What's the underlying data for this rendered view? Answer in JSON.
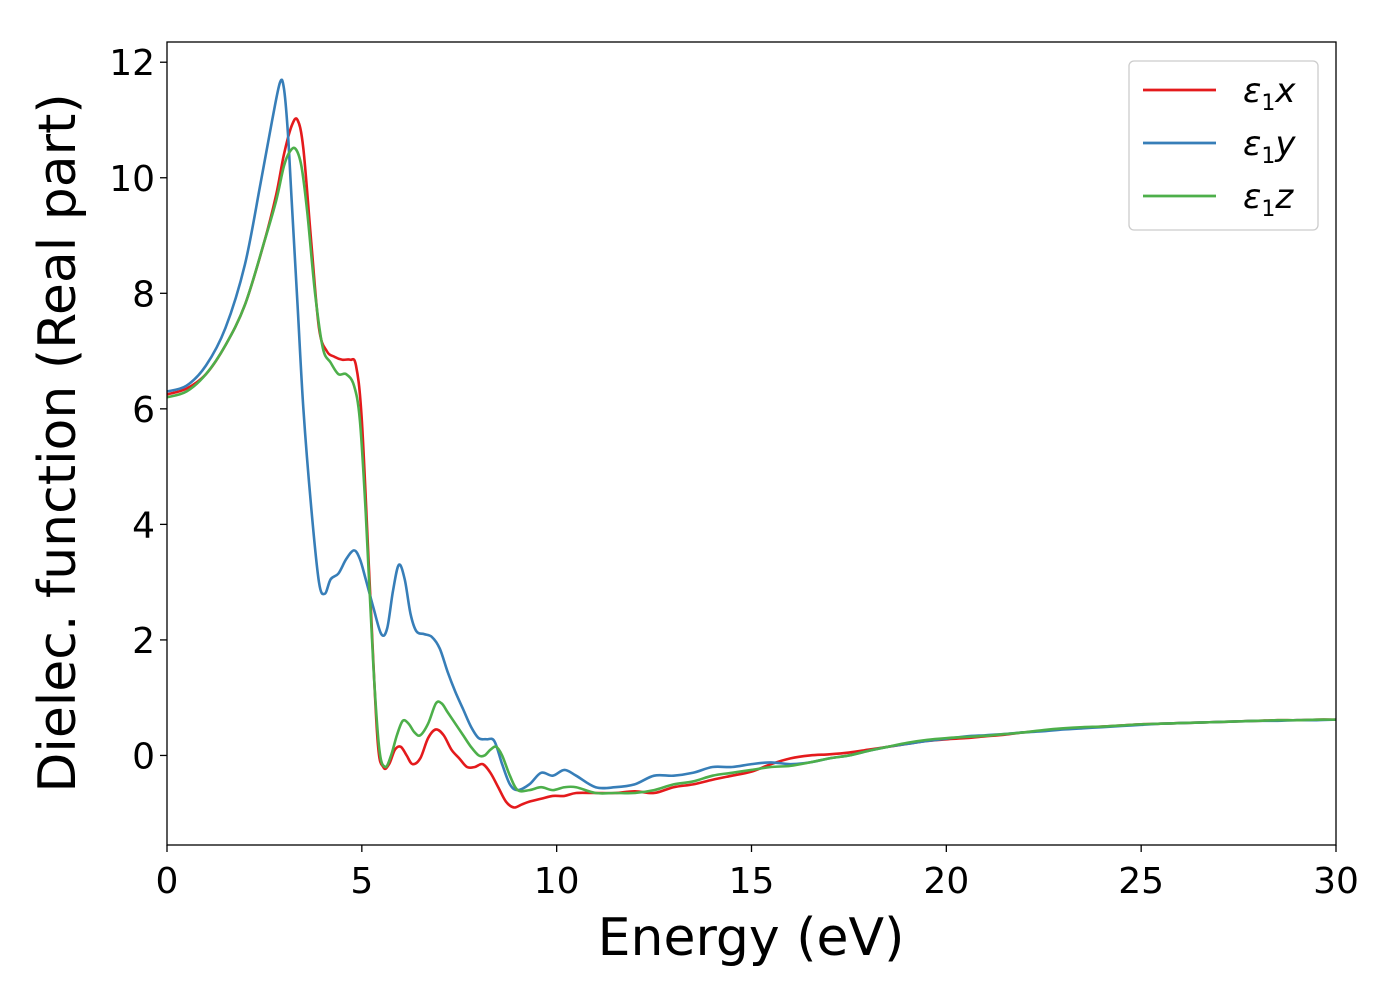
{
  "chart_data": {
    "type": "line",
    "title": "",
    "xlabel": "Energy (eV)",
    "ylabel": "Dielec. function (Real part)",
    "xlim": [
      0,
      30
    ],
    "ylim": [
      -1.55,
      12.35
    ],
    "xticks": [
      0,
      5,
      10,
      15,
      20,
      25,
      30
    ],
    "yticks": [
      0,
      2,
      4,
      6,
      8,
      10,
      12
    ],
    "grid": false,
    "legend_position": "top-right",
    "series": [
      {
        "name": "ε1x",
        "legend_base": "ε",
        "legend_sub": "1",
        "legend_suffix": "x",
        "color": "#e41a1c",
        "x": [
          0,
          0.5,
          1.0,
          1.5,
          2.0,
          2.5,
          2.8,
          3.0,
          3.2,
          3.35,
          3.5,
          3.7,
          3.9,
          4.1,
          4.3,
          4.5,
          4.7,
          4.85,
          5.0,
          5.2,
          5.4,
          5.55,
          5.7,
          5.85,
          6.0,
          6.15,
          6.3,
          6.5,
          6.7,
          6.9,
          7.1,
          7.3,
          7.5,
          7.7,
          7.9,
          8.1,
          8.3,
          8.5,
          8.7,
          8.9,
          9.1,
          9.3,
          9.6,
          9.9,
          10.2,
          10.5,
          11.0,
          11.5,
          12.0,
          12.5,
          13.0,
          13.5,
          14.0,
          14.5,
          15.0,
          15.5,
          16.0,
          16.5,
          17.0,
          17.5,
          18.0,
          18.5,
          19.0,
          19.5,
          20.0,
          20.5,
          21.0,
          21.5,
          22.0,
          22.5,
          23.0,
          23.5,
          24.0,
          24.5,
          25.0,
          25.5,
          26.0,
          26.5,
          27.0,
          27.5,
          28.0,
          28.5,
          29.0,
          29.5,
          30.0
        ],
        "y": [
          6.25,
          6.35,
          6.6,
          7.1,
          7.8,
          8.9,
          9.7,
          10.4,
          10.9,
          11.0,
          10.5,
          8.9,
          7.4,
          7.0,
          6.9,
          6.85,
          6.85,
          6.75,
          5.8,
          3.0,
          0.3,
          -0.2,
          -0.15,
          0.1,
          0.15,
          0.0,
          -0.15,
          -0.05,
          0.3,
          0.45,
          0.35,
          0.1,
          -0.05,
          -0.2,
          -0.2,
          -0.15,
          -0.3,
          -0.55,
          -0.8,
          -0.9,
          -0.85,
          -0.8,
          -0.75,
          -0.7,
          -0.7,
          -0.65,
          -0.65,
          -0.65,
          -0.62,
          -0.65,
          -0.55,
          -0.5,
          -0.42,
          -0.35,
          -0.28,
          -0.15,
          -0.05,
          0.0,
          0.02,
          0.05,
          0.1,
          0.15,
          0.2,
          0.25,
          0.28,
          0.3,
          0.33,
          0.36,
          0.4,
          0.43,
          0.46,
          0.48,
          0.5,
          0.52,
          0.54,
          0.55,
          0.56,
          0.57,
          0.58,
          0.59,
          0.6,
          0.61,
          0.61,
          0.62,
          0.62
        ]
      },
      {
        "name": "ε1y",
        "legend_base": "ε",
        "legend_sub": "1",
        "legend_suffix": "y",
        "color": "#377eb8",
        "x": [
          0,
          0.5,
          1.0,
          1.5,
          2.0,
          2.4,
          2.7,
          2.9,
          3.0,
          3.1,
          3.2,
          3.35,
          3.5,
          3.7,
          3.9,
          4.05,
          4.2,
          4.4,
          4.6,
          4.8,
          4.95,
          5.1,
          5.3,
          5.5,
          5.65,
          5.8,
          5.95,
          6.1,
          6.25,
          6.4,
          6.6,
          6.8,
          7.0,
          7.2,
          7.4,
          7.6,
          7.8,
          8.0,
          8.2,
          8.4,
          8.6,
          8.8,
          9.0,
          9.3,
          9.6,
          9.9,
          10.2,
          10.5,
          11.0,
          11.5,
          12.0,
          12.5,
          13.0,
          13.5,
          14.0,
          14.5,
          15.0,
          15.5,
          16.0,
          16.5,
          17.0,
          17.5,
          18.0,
          18.5,
          19.0,
          19.5,
          20.0,
          20.5,
          21.0,
          21.5,
          22.0,
          22.5,
          23.0,
          23.5,
          24.0,
          24.5,
          25.0,
          25.5,
          26.0,
          26.5,
          27.0,
          27.5,
          28.0,
          28.5,
          29.0,
          29.5,
          30.0
        ],
        "y": [
          6.3,
          6.4,
          6.75,
          7.4,
          8.5,
          9.9,
          11.0,
          11.65,
          11.55,
          10.8,
          9.6,
          7.8,
          6.0,
          4.3,
          3.0,
          2.8,
          3.05,
          3.15,
          3.4,
          3.55,
          3.4,
          3.05,
          2.55,
          2.1,
          2.2,
          2.85,
          3.3,
          3.05,
          2.45,
          2.15,
          2.1,
          2.05,
          1.85,
          1.45,
          1.1,
          0.8,
          0.5,
          0.3,
          0.28,
          0.25,
          -0.15,
          -0.5,
          -0.6,
          -0.5,
          -0.3,
          -0.35,
          -0.25,
          -0.35,
          -0.55,
          -0.55,
          -0.5,
          -0.35,
          -0.35,
          -0.3,
          -0.2,
          -0.2,
          -0.15,
          -0.12,
          -0.15,
          -0.12,
          -0.05,
          0.0,
          0.08,
          0.15,
          0.2,
          0.25,
          0.29,
          0.33,
          0.35,
          0.37,
          0.4,
          0.42,
          0.45,
          0.47,
          0.49,
          0.51,
          0.53,
          0.55,
          0.56,
          0.57,
          0.58,
          0.59,
          0.6,
          0.6,
          0.61,
          0.61,
          0.62
        ]
      },
      {
        "name": "ε1z",
        "legend_base": "ε",
        "legend_sub": "1",
        "legend_suffix": "z",
        "color": "#4daf4a",
        "x": [
          0,
          0.5,
          1.0,
          1.5,
          2.0,
          2.5,
          2.8,
          3.0,
          3.15,
          3.3,
          3.45,
          3.6,
          3.8,
          4.0,
          4.2,
          4.4,
          4.6,
          4.8,
          4.95,
          5.1,
          5.3,
          5.45,
          5.6,
          5.75,
          5.9,
          6.05,
          6.2,
          6.35,
          6.5,
          6.7,
          6.9,
          7.05,
          7.2,
          7.4,
          7.6,
          7.8,
          8.0,
          8.15,
          8.3,
          8.45,
          8.6,
          8.8,
          9.0,
          9.3,
          9.6,
          9.9,
          10.2,
          10.5,
          11.0,
          11.5,
          12.0,
          12.5,
          13.0,
          13.5,
          14.0,
          14.5,
          15.0,
          15.5,
          16.0,
          16.5,
          17.0,
          17.5,
          18.0,
          18.5,
          19.0,
          19.5,
          20.0,
          20.5,
          21.0,
          21.5,
          22.0,
          22.5,
          23.0,
          23.5,
          24.0,
          24.5,
          25.0,
          25.5,
          26.0,
          26.5,
          27.0,
          27.5,
          28.0,
          28.5,
          29.0,
          29.5,
          30.0
        ],
        "y": [
          6.2,
          6.3,
          6.6,
          7.1,
          7.8,
          8.9,
          9.6,
          10.2,
          10.45,
          10.5,
          10.2,
          9.4,
          8.0,
          7.05,
          6.8,
          6.6,
          6.6,
          6.4,
          5.8,
          4.2,
          1.5,
          0.1,
          -0.2,
          0.0,
          0.35,
          0.6,
          0.55,
          0.4,
          0.35,
          0.55,
          0.9,
          0.9,
          0.75,
          0.55,
          0.35,
          0.15,
          0.0,
          0.0,
          0.1,
          0.15,
          0.0,
          -0.35,
          -0.6,
          -0.6,
          -0.55,
          -0.6,
          -0.55,
          -0.55,
          -0.65,
          -0.65,
          -0.65,
          -0.6,
          -0.5,
          -0.45,
          -0.35,
          -0.3,
          -0.25,
          -0.2,
          -0.18,
          -0.12,
          -0.05,
          0.0,
          0.08,
          0.15,
          0.22,
          0.27,
          0.3,
          0.32,
          0.34,
          0.37,
          0.4,
          0.44,
          0.47,
          0.49,
          0.5,
          0.52,
          0.54,
          0.55,
          0.56,
          0.57,
          0.58,
          0.59,
          0.6,
          0.61,
          0.61,
          0.62,
          0.62
        ]
      }
    ]
  }
}
